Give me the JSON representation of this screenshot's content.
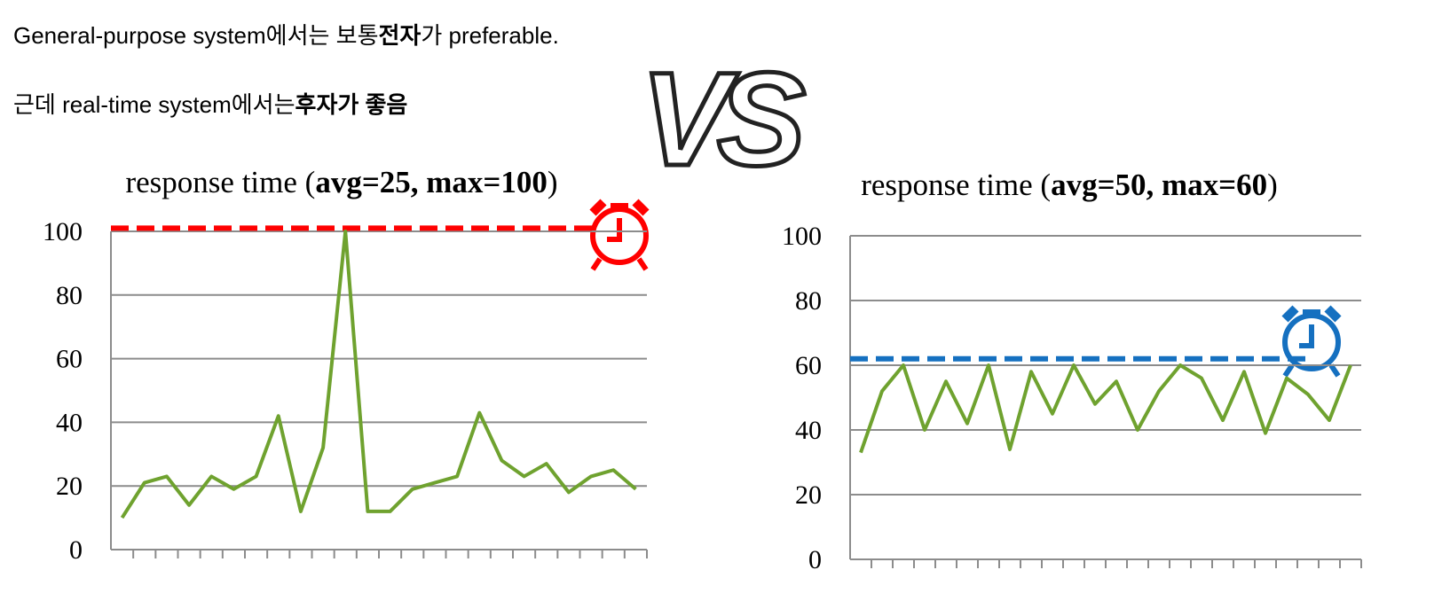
{
  "header": {
    "line1": [
      {
        "text": "General-purpose system에서는 보통",
        "bold": false
      },
      {
        "text": "전자",
        "bold": true
      },
      {
        "text": "가 preferable.",
        "bold": false
      }
    ],
    "line2": [
      {
        "text": "근데 real-time system에서는",
        "bold": false
      },
      {
        "text": "후자가 좋음",
        "bold": true
      }
    ],
    "vs": "VS"
  },
  "chart_data": [
    {
      "type": "line",
      "title": [
        {
          "text": "response time (",
          "bold": false
        },
        {
          "text": "avg=25, max=100",
          "bold": true
        },
        {
          "text": ")",
          "bold": false
        }
      ],
      "categories": [
        null,
        null,
        null,
        null,
        null,
        null,
        null,
        null,
        null,
        null,
        null,
        null,
        null,
        null,
        null,
        null,
        null,
        null,
        null,
        null,
        null,
        null,
        null,
        null
      ],
      "series": [
        {
          "color": "#6fa22f",
          "values": [
            10,
            21,
            23,
            14,
            23,
            19,
            23,
            42,
            12,
            32,
            100,
            12,
            12,
            19,
            21,
            23,
            43,
            28,
            23,
            27,
            18,
            23,
            25,
            19
          ]
        }
      ],
      "threshold": {
        "value": 101,
        "color": "#ff0000"
      },
      "ylim": [
        0,
        100
      ],
      "yticks": [
        0,
        20,
        40,
        60,
        80,
        100
      ],
      "grid": true
    },
    {
      "type": "line",
      "title": [
        {
          "text": "response time (",
          "bold": false
        },
        {
          "text": "avg=50, max=60",
          "bold": true
        },
        {
          "text": ")",
          "bold": false
        }
      ],
      "categories": [
        null,
        null,
        null,
        null,
        null,
        null,
        null,
        null,
        null,
        null,
        null,
        null,
        null,
        null,
        null,
        null,
        null,
        null,
        null,
        null,
        null,
        null,
        null,
        null
      ],
      "series": [
        {
          "color": "#6fa22f",
          "values": [
            33,
            52,
            60,
            40,
            55,
            42,
            60,
            34,
            58,
            45,
            60,
            48,
            55,
            40,
            52,
            60,
            56,
            43,
            58,
            39,
            56,
            51,
            43,
            60
          ]
        }
      ],
      "threshold": {
        "value": 62,
        "color": "#1570c0"
      },
      "ylim": [
        0,
        100
      ],
      "yticks": [
        0,
        20,
        40,
        60,
        80,
        100
      ],
      "grid": true
    }
  ]
}
